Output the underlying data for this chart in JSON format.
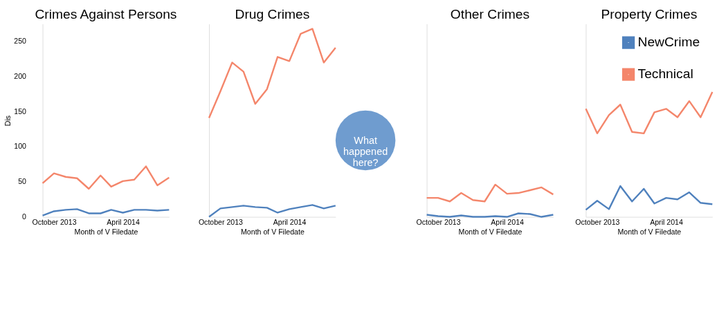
{
  "chart_data": [
    {
      "type": "line",
      "title": "Crimes Against Persons",
      "xlabel": "Month of V Filedate",
      "ylabel": "Dis",
      "x": [
        "2013-09",
        "2013-10",
        "2013-11",
        "2013-12",
        "2014-01",
        "2014-02",
        "2014-03",
        "2014-04",
        "2014-05",
        "2014-06",
        "2014-07",
        "2014-08"
      ],
      "xlim": [
        "2013-09",
        "2014-08"
      ],
      "xticks": [
        {
          "value": "2013-10",
          "label": "October 2013"
        },
        {
          "value": "2014-04",
          "label": "April 2014"
        }
      ],
      "ylim": [
        0,
        275
      ],
      "yticks": [
        0,
        50,
        100,
        150,
        200,
        250
      ],
      "grid": false,
      "series": [
        {
          "color": "#4f81bd",
          "values": [
            2,
            8,
            10,
            11,
            5,
            5,
            10,
            6,
            10,
            10,
            9,
            10
          ]
        },
        {
          "color": "#f4866b",
          "values": [
            48,
            62,
            57,
            55,
            40,
            59,
            43,
            51,
            53,
            72,
            45,
            56
          ]
        }
      ]
    },
    {
      "type": "line",
      "title": "Drug Crimes",
      "xlabel": "Month of V Filedate",
      "tick_labels": "x",
      "x": [
        "2013-09",
        "2013-10",
        "2013-11",
        "2013-12",
        "2014-01",
        "2014-02",
        "2014-03",
        "2014-04",
        "2014-05",
        "2014-06",
        "2014-07",
        "2014-08"
      ],
      "xlim": [
        "2013-09",
        "2014-08"
      ],
      "xticks": [
        {
          "value": "2013-10",
          "label": "October 2013"
        },
        {
          "value": "2014-04",
          "label": "April 2014"
        }
      ],
      "ylim": [
        0,
        275
      ],
      "yticks": [
        0,
        50,
        100,
        150,
        200,
        250
      ],
      "grid": false,
      "annotations": [
        "What happened here?"
      ],
      "series": [
        {
          "color": "#4f81bd",
          "values": [
            0,
            12,
            14,
            16,
            14,
            13,
            6,
            11,
            14,
            17,
            12,
            16
          ]
        },
        {
          "color": "#f4866b",
          "values": [
            141,
            179,
            220,
            207,
            161,
            182,
            228,
            222,
            261,
            268,
            220,
            241
          ]
        }
      ]
    },
    {
      "type": "line",
      "title": "Other Crimes",
      "xlabel": "Month of V Filedate",
      "tick_labels": "x",
      "x": [
        "2013-09",
        "2013-10",
        "2013-11",
        "2013-12",
        "2014-01",
        "2014-02",
        "2014-03",
        "2014-04",
        "2014-05",
        "2014-06",
        "2014-07",
        "2014-08"
      ],
      "xlim": [
        "2013-09",
        "2014-08"
      ],
      "xticks": [
        {
          "value": "2013-10",
          "label": "October 2013"
        },
        {
          "value": "2014-04",
          "label": "April 2014"
        }
      ],
      "ylim": [
        0,
        275
      ],
      "yticks": [
        0,
        50,
        100,
        150,
        200,
        250
      ],
      "grid": false,
      "series": [
        {
          "color": "#4f81bd",
          "values": [
            3,
            1,
            0,
            2,
            0,
            0,
            1,
            0,
            5,
            4,
            0,
            3
          ]
        },
        {
          "color": "#f4866b",
          "values": [
            27,
            27,
            22,
            34,
            24,
            22,
            46,
            33,
            34,
            38,
            42,
            32
          ]
        }
      ]
    },
    {
      "type": "line",
      "title": "Property Crimes",
      "xlabel": "Month of V Filedate",
      "tick_labels": "x",
      "legend": "top right",
      "x": [
        "2013-09",
        "2013-10",
        "2013-11",
        "2013-12",
        "2014-01",
        "2014-02",
        "2014-03",
        "2014-04",
        "2014-05",
        "2014-06",
        "2014-07",
        "2014-08"
      ],
      "xlim": [
        "2013-09",
        "2014-08"
      ],
      "xticks": [
        {
          "value": "2013-10",
          "label": "October 2013"
        },
        {
          "value": "2014-04",
          "label": "April 2014"
        }
      ],
      "ylim": [
        0,
        275
      ],
      "yticks": [
        0,
        50,
        100,
        150,
        200,
        250
      ],
      "grid": false,
      "series": [
        {
          "name": "NewCrime",
          "color": "#4f81bd",
          "values": [
            10,
            23,
            11,
            44,
            22,
            40,
            19,
            27,
            25,
            35,
            20,
            18
          ]
        },
        {
          "name": "Technical",
          "color": "#f4866b",
          "values": [
            154,
            119,
            145,
            160,
            121,
            119,
            149,
            154,
            142,
            165,
            142,
            178
          ]
        }
      ]
    }
  ]
}
